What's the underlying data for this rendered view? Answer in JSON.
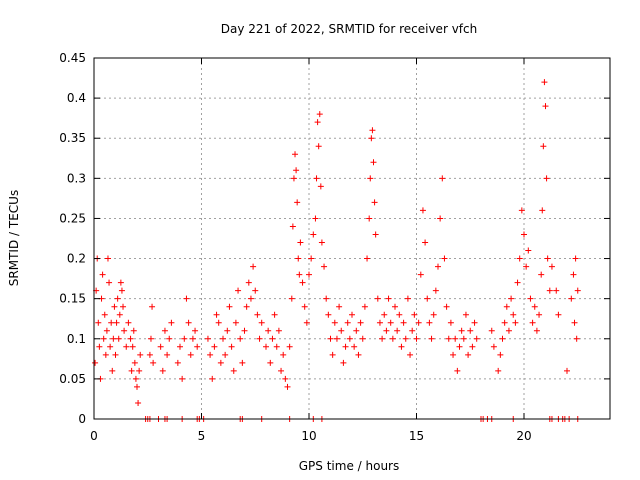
{
  "chart_data": {
    "type": "scatter",
    "title": "Day 221 of 2022, SRMTID for receiver vfch",
    "xlabel": "GPS time / hours",
    "ylabel": "SRMTID / TECUs",
    "xlim": [
      0,
      24
    ],
    "ylim": [
      0,
      0.45
    ],
    "xticks": [
      0,
      5,
      10,
      15,
      20
    ],
    "yticks": [
      0,
      0.05,
      0.1,
      0.15,
      0.2,
      0.25,
      0.3,
      0.35,
      0.4,
      0.45
    ],
    "grid": true,
    "marker": "plus",
    "color": "#ff0000",
    "series": [
      {
        "name": "SRMTID",
        "points": [
          [
            0.05,
            0.07
          ],
          [
            0.1,
            0.16
          ],
          [
            0.15,
            0.2
          ],
          [
            0.2,
            0.12
          ],
          [
            0.25,
            0.09
          ],
          [
            0.3,
            0.05
          ],
          [
            0.35,
            0.15
          ],
          [
            0.4,
            0.18
          ],
          [
            0.45,
            0.1
          ],
          [
            0.5,
            0.13
          ],
          [
            0.55,
            0.08
          ],
          [
            0.6,
            0.11
          ],
          [
            0.65,
            0.2
          ],
          [
            0.7,
            0.17
          ],
          [
            0.75,
            0.09
          ],
          [
            0.8,
            0.12
          ],
          [
            0.85,
            0.06
          ],
          [
            0.9,
            0.1
          ],
          [
            0.95,
            0.14
          ],
          [
            1.0,
            0.08
          ],
          [
            1.05,
            0.12
          ],
          [
            1.1,
            0.15
          ],
          [
            1.15,
            0.1
          ],
          [
            1.2,
            0.13
          ],
          [
            1.25,
            0.17
          ],
          [
            1.3,
            0.16
          ],
          [
            1.35,
            0.14
          ],
          [
            1.4,
            0.11
          ],
          [
            1.5,
            0.09
          ],
          [
            1.6,
            0.12
          ],
          [
            1.7,
            0.1
          ],
          [
            1.75,
            0.06
          ],
          [
            1.8,
            0.09
          ],
          [
            1.85,
            0.11
          ],
          [
            1.9,
            0.07
          ],
          [
            1.95,
            0.05
          ],
          [
            2.0,
            0.04
          ],
          [
            2.05,
            0.02
          ],
          [
            2.1,
            0.06
          ],
          [
            2.15,
            0.08
          ],
          [
            2.6,
            0.08
          ],
          [
            2.65,
            0.1
          ],
          [
            2.7,
            0.14
          ],
          [
            2.75,
            0.07
          ],
          [
            3.1,
            0.09
          ],
          [
            3.2,
            0.06
          ],
          [
            3.3,
            0.11
          ],
          [
            3.4,
            0.08
          ],
          [
            3.5,
            0.1
          ],
          [
            3.6,
            0.12
          ],
          [
            3.9,
            0.07
          ],
          [
            4.0,
            0.09
          ],
          [
            4.1,
            0.05
          ],
          [
            4.2,
            0.1
          ],
          [
            4.3,
            0.15
          ],
          [
            4.4,
            0.12
          ],
          [
            4.5,
            0.08
          ],
          [
            4.6,
            0.1
          ],
          [
            4.7,
            0.11
          ],
          [
            4.8,
            0.09
          ],
          [
            5.3,
            0.1
          ],
          [
            5.4,
            0.08
          ],
          [
            5.5,
            0.05
          ],
          [
            5.6,
            0.09
          ],
          [
            5.7,
            0.13
          ],
          [
            5.8,
            0.12
          ],
          [
            5.9,
            0.07
          ],
          [
            6.0,
            0.1
          ],
          [
            6.1,
            0.08
          ],
          [
            6.2,
            0.11
          ],
          [
            6.3,
            0.14
          ],
          [
            6.4,
            0.09
          ],
          [
            6.5,
            0.06
          ],
          [
            6.6,
            0.12
          ],
          [
            6.7,
            0.16
          ],
          [
            6.8,
            0.1
          ],
          [
            6.9,
            0.07
          ],
          [
            7.0,
            0.11
          ],
          [
            7.1,
            0.14
          ],
          [
            7.2,
            0.17
          ],
          [
            7.3,
            0.15
          ],
          [
            7.4,
            0.19
          ],
          [
            7.5,
            0.16
          ],
          [
            7.6,
            0.13
          ],
          [
            7.7,
            0.1
          ],
          [
            7.8,
            0.12
          ],
          [
            8.0,
            0.09
          ],
          [
            8.1,
            0.11
          ],
          [
            8.2,
            0.07
          ],
          [
            8.3,
            0.1
          ],
          [
            8.4,
            0.13
          ],
          [
            8.5,
            0.09
          ],
          [
            8.6,
            0.11
          ],
          [
            8.7,
            0.06
          ],
          [
            8.8,
            0.08
          ],
          [
            8.9,
            0.05
          ],
          [
            9.0,
            0.04
          ],
          [
            9.1,
            0.09
          ],
          [
            9.2,
            0.15
          ],
          [
            9.25,
            0.24
          ],
          [
            9.3,
            0.3
          ],
          [
            9.35,
            0.33
          ],
          [
            9.4,
            0.31
          ],
          [
            9.45,
            0.27
          ],
          [
            9.5,
            0.2
          ],
          [
            9.55,
            0.18
          ],
          [
            9.6,
            0.22
          ],
          [
            9.7,
            0.17
          ],
          [
            9.8,
            0.14
          ],
          [
            9.9,
            0.12
          ],
          [
            10.0,
            0.18
          ],
          [
            10.1,
            0.2
          ],
          [
            10.2,
            0.23
          ],
          [
            10.3,
            0.25
          ],
          [
            10.35,
            0.3
          ],
          [
            10.4,
            0.37
          ],
          [
            10.45,
            0.34
          ],
          [
            10.5,
            0.38
          ],
          [
            10.55,
            0.29
          ],
          [
            10.6,
            0.22
          ],
          [
            10.7,
            0.19
          ],
          [
            10.8,
            0.15
          ],
          [
            10.9,
            0.13
          ],
          [
            11.0,
            0.1
          ],
          [
            11.1,
            0.08
          ],
          [
            11.2,
            0.12
          ],
          [
            11.3,
            0.1
          ],
          [
            11.4,
            0.14
          ],
          [
            11.5,
            0.11
          ],
          [
            11.6,
            0.07
          ],
          [
            11.7,
            0.09
          ],
          [
            11.8,
            0.12
          ],
          [
            11.9,
            0.1
          ],
          [
            12.0,
            0.13
          ],
          [
            12.1,
            0.09
          ],
          [
            12.2,
            0.11
          ],
          [
            12.3,
            0.08
          ],
          [
            12.4,
            0.12
          ],
          [
            12.5,
            0.1
          ],
          [
            12.6,
            0.14
          ],
          [
            12.7,
            0.2
          ],
          [
            12.8,
            0.25
          ],
          [
            12.85,
            0.3
          ],
          [
            12.9,
            0.35
          ],
          [
            12.95,
            0.36
          ],
          [
            13.0,
            0.32
          ],
          [
            13.05,
            0.27
          ],
          [
            13.1,
            0.23
          ],
          [
            13.2,
            0.15
          ],
          [
            13.3,
            0.12
          ],
          [
            13.4,
            0.1
          ],
          [
            13.5,
            0.13
          ],
          [
            13.6,
            0.11
          ],
          [
            13.7,
            0.15
          ],
          [
            13.8,
            0.12
          ],
          [
            13.9,
            0.1
          ],
          [
            14.0,
            0.14
          ],
          [
            14.1,
            0.11
          ],
          [
            14.2,
            0.13
          ],
          [
            14.3,
            0.09
          ],
          [
            14.4,
            0.12
          ],
          [
            14.5,
            0.1
          ],
          [
            14.6,
            0.15
          ],
          [
            14.7,
            0.08
          ],
          [
            14.8,
            0.11
          ],
          [
            14.9,
            0.13
          ],
          [
            15.0,
            0.1
          ],
          [
            15.1,
            0.12
          ],
          [
            15.2,
            0.18
          ],
          [
            15.3,
            0.26
          ],
          [
            15.4,
            0.22
          ],
          [
            15.5,
            0.15
          ],
          [
            15.6,
            0.12
          ],
          [
            15.7,
            0.1
          ],
          [
            15.8,
            0.13
          ],
          [
            15.9,
            0.16
          ],
          [
            16.0,
            0.19
          ],
          [
            16.1,
            0.25
          ],
          [
            16.2,
            0.3
          ],
          [
            16.3,
            0.2
          ],
          [
            16.4,
            0.14
          ],
          [
            16.5,
            0.1
          ],
          [
            16.6,
            0.12
          ],
          [
            16.7,
            0.08
          ],
          [
            16.8,
            0.1
          ],
          [
            16.9,
            0.06
          ],
          [
            17.0,
            0.09
          ],
          [
            17.1,
            0.11
          ],
          [
            17.2,
            0.1
          ],
          [
            17.3,
            0.13
          ],
          [
            17.4,
            0.08
          ],
          [
            17.5,
            0.11
          ],
          [
            17.6,
            0.09
          ],
          [
            17.7,
            0.12
          ],
          [
            17.8,
            0.1
          ],
          [
            18.5,
            0.11
          ],
          [
            18.6,
            0.09
          ],
          [
            18.8,
            0.06
          ],
          [
            18.9,
            0.08
          ],
          [
            19.0,
            0.1
          ],
          [
            19.1,
            0.12
          ],
          [
            19.2,
            0.14
          ],
          [
            19.3,
            0.11
          ],
          [
            19.4,
            0.15
          ],
          [
            19.5,
            0.13
          ],
          [
            19.6,
            0.12
          ],
          [
            19.7,
            0.17
          ],
          [
            19.8,
            0.2
          ],
          [
            19.9,
            0.26
          ],
          [
            20.0,
            0.23
          ],
          [
            20.1,
            0.19
          ],
          [
            20.2,
            0.21
          ],
          [
            20.3,
            0.15
          ],
          [
            20.4,
            0.12
          ],
          [
            20.5,
            0.14
          ],
          [
            20.6,
            0.11
          ],
          [
            20.7,
            0.13
          ],
          [
            20.8,
            0.18
          ],
          [
            20.85,
            0.26
          ],
          [
            20.9,
            0.34
          ],
          [
            20.95,
            0.42
          ],
          [
            21.0,
            0.39
          ],
          [
            21.05,
            0.3
          ],
          [
            21.1,
            0.2
          ],
          [
            21.2,
            0.16
          ],
          [
            21.3,
            0.19
          ],
          [
            21.5,
            0.16
          ],
          [
            21.6,
            0.13
          ],
          [
            22.0,
            0.06
          ],
          [
            22.2,
            0.15
          ],
          [
            22.3,
            0.18
          ],
          [
            22.35,
            0.12
          ],
          [
            22.4,
            0.2
          ],
          [
            22.45,
            0.1
          ],
          [
            22.5,
            0.16
          ],
          [
            2.4,
            0
          ],
          [
            2.5,
            0
          ],
          [
            2.6,
            0
          ],
          [
            3.0,
            0
          ],
          [
            3.3,
            0
          ],
          [
            3.4,
            0
          ],
          [
            4.1,
            0
          ],
          [
            4.8,
            0
          ],
          [
            4.9,
            0
          ],
          [
            5.1,
            0
          ],
          [
            6.8,
            0
          ],
          [
            6.9,
            0
          ],
          [
            7.8,
            0
          ],
          [
            9.1,
            0
          ],
          [
            10.2,
            0
          ],
          [
            10.6,
            0
          ],
          [
            18.0,
            0
          ],
          [
            18.1,
            0
          ],
          [
            18.3,
            0
          ],
          [
            18.5,
            0
          ],
          [
            19.5,
            0
          ],
          [
            21.2,
            0
          ],
          [
            21.3,
            0
          ],
          [
            21.6,
            0
          ],
          [
            21.8,
            0
          ],
          [
            21.9,
            0
          ],
          [
            22.1,
            0
          ],
          [
            22.5,
            0
          ]
        ]
      }
    ]
  }
}
